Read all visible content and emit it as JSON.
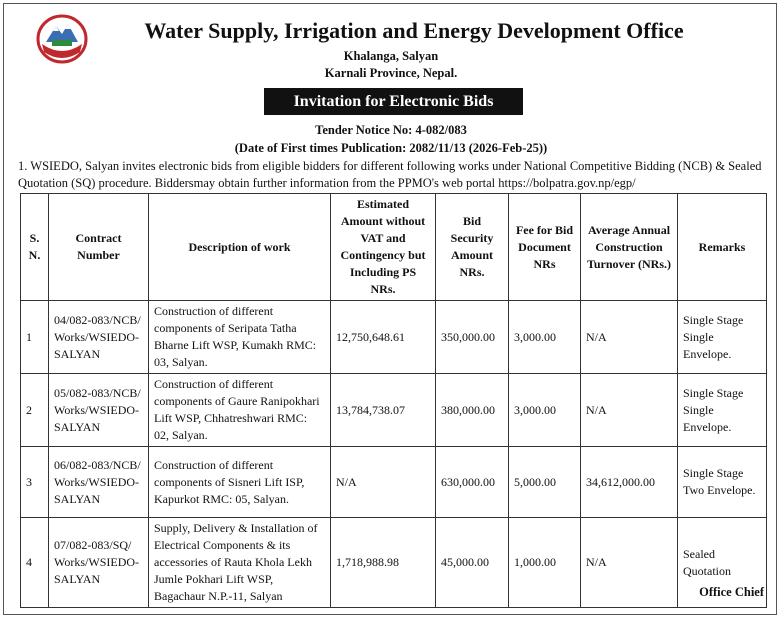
{
  "header": {
    "title": "Water Supply, Irrigation and Energy Development Office",
    "address": [
      "Khalanga, Salyan",
      "Karnali Province, Nepal."
    ]
  },
  "notice_title": "Invitation for Electronic Bids",
  "tender_no": "Tender Notice No: 4-082/083",
  "publication_date": "(Date of First times Publication: 2082/11/13 (2026-Feb-25))",
  "paragraph": "1. WSIEDO, Salyan invites electronic bids from eligible bidders for different following works under National Competitive Bidding (NCB) & Sealed Quotation (SQ) procedure. Biddersmay obtain further information from the PPMO's web portal https://bolpatra.gov.np/egp/",
  "table": {
    "columns": [
      "S. N.",
      "Contract Number",
      "Description of work",
      "Estimated Amount without VAT and Contingency but Including PS NRs.",
      "Bid Security Amount NRs.",
      "Fee for Bid Document NRs",
      "Average Annual Construction Turnover (NRs.)",
      "Remarks"
    ],
    "rows": [
      [
        "1",
        "04/082-083/NCB/Works/WSIEDO-SALYAN",
        "Construction of different components of Seripata Tatha Bharne Lift WSP, Kumakh RMC: 03, Salyan.",
        "12,750,648.61",
        "350,000.00",
        "3,000.00",
        "N/A",
        "Single Stage Single Envelope."
      ],
      [
        "2",
        "05/082-083/NCB/Works/WSIEDO-SALYAN",
        "Construction of different components of Gaure Ranipokhari Lift WSP, Chhatreshwari RMC: 02, Salyan.",
        "13,784,738.07",
        "380,000.00",
        "3,000.00",
        "N/A",
        "Single Stage Single Envelope."
      ],
      [
        "3",
        "06/082-083/NCB/Works/WSIEDO-SALYAN",
        "Construction of different components of Sisneri Lift ISP, Kapurkot RMC: 05, Salyan.",
        "N/A",
        "630,000.00",
        "5,000.00",
        "34,612,000.00",
        "Single Stage Two Envelope."
      ],
      [
        "4",
        "07/082-083/SQ/Works/WSIEDO-SALYAN",
        "Supply, Delivery & Installation of Electrical Components & its accessories of Rauta Khola Lekh Jumle Pokhari Lift WSP, Bagachaur N.P.-11, Salyan",
        "1,718,988.98",
        "45,000.00",
        "1,000.00",
        "N/A",
        "Sealed Quotation"
      ]
    ]
  },
  "footer": "Office Chief"
}
